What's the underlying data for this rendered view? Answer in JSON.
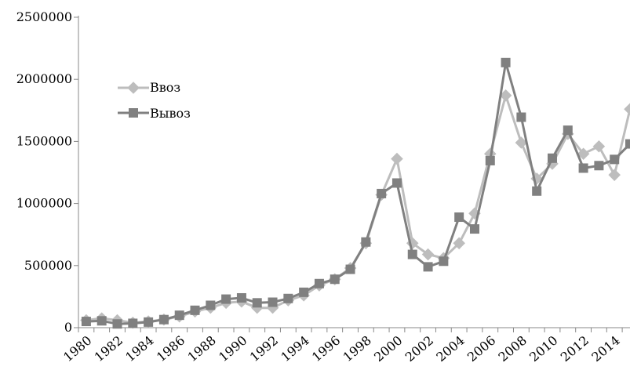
{
  "chart_data": {
    "type": "line",
    "x": [
      1980,
      1981,
      1982,
      1983,
      1984,
      1985,
      1986,
      1987,
      1988,
      1989,
      1990,
      1991,
      1992,
      1993,
      1994,
      1995,
      1996,
      1997,
      1998,
      1999,
      2000,
      2001,
      2002,
      2003,
      2004,
      2005,
      2006,
      2007,
      2008,
      2009,
      2010,
      2011,
      2012,
      2013,
      2014,
      2015
    ],
    "x_tick_labels": [
      "1980",
      "1982",
      "1984",
      "1986",
      "1988",
      "1990",
      "1992",
      "1994",
      "1996",
      "1998",
      "2000",
      "2002",
      "2004",
      "2006",
      "2008",
      "2010",
      "2012",
      "2014"
    ],
    "y_tick_labels": [
      "0",
      "500000",
      "1000000",
      "1500000",
      "2000000",
      "2500000"
    ],
    "ylim": [
      0,
      2500000
    ],
    "series": [
      {
        "name": "Ввоз",
        "color": "#bdbdbd",
        "marker": "diamond",
        "values": [
          60000,
          75000,
          60000,
          40000,
          50000,
          65000,
          90000,
          130000,
          160000,
          200000,
          210000,
          160000,
          160000,
          220000,
          260000,
          340000,
          390000,
          480000,
          680000,
          1070000,
          1360000,
          680000,
          590000,
          560000,
          680000,
          920000,
          1400000,
          1870000,
          1490000,
          1200000,
          1320000,
          1560000,
          1400000,
          1460000,
          1230000,
          1760000
        ]
      },
      {
        "name": "Вывоз",
        "color": "#808080",
        "marker": "square",
        "values": [
          50000,
          55000,
          30000,
          35000,
          45000,
          65000,
          100000,
          140000,
          180000,
          230000,
          240000,
          200000,
          205000,
          235000,
          285000,
          355000,
          390000,
          470000,
          690000,
          1080000,
          1165000,
          590000,
          490000,
          535000,
          890000,
          795000,
          1345000,
          2135000,
          1695000,
          1100000,
          1365000,
          1590000,
          1285000,
          1305000,
          1355000,
          1480000
        ]
      }
    ],
    "legend_position": "upper-left",
    "grid": false
  }
}
